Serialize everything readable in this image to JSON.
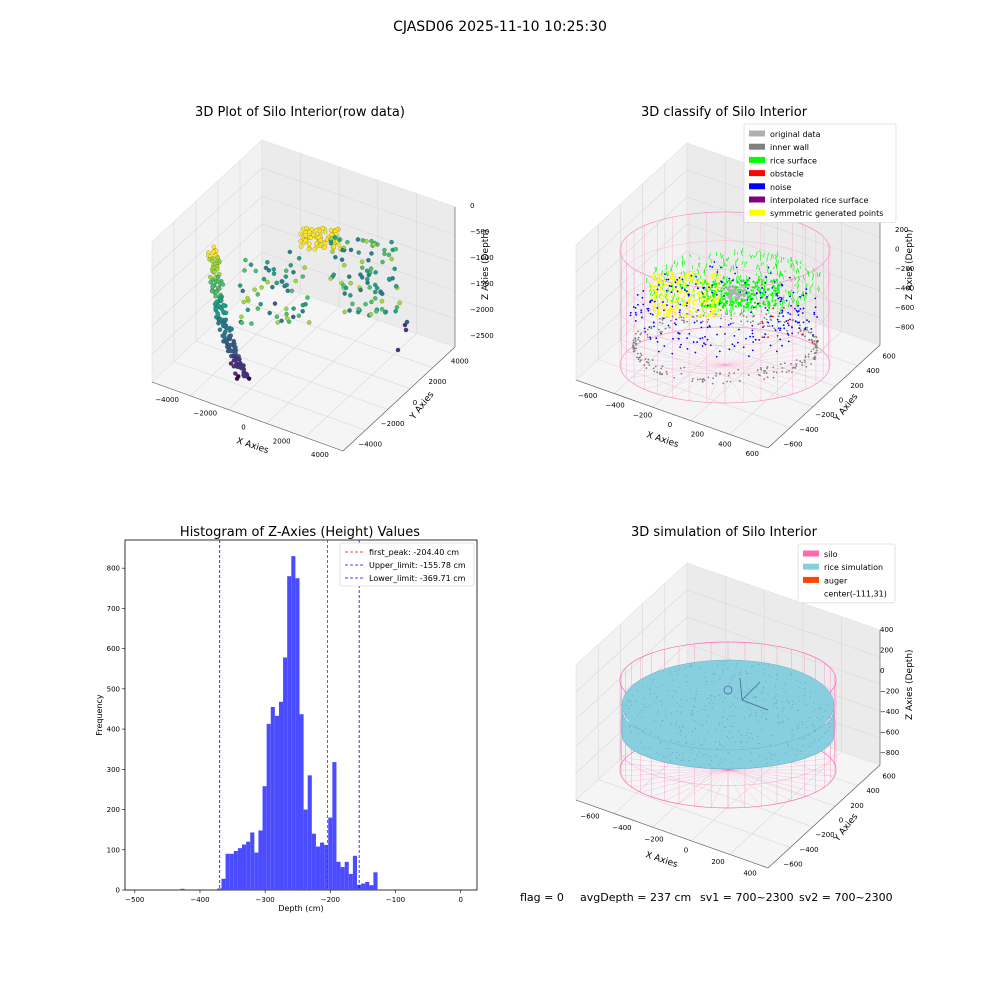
{
  "figure_title": "CJASD06 2025-11-10 10:25:30",
  "status_line": {
    "flag": "flag = 0",
    "avg_depth": "avgDepth = 237 cm",
    "sv1": "sv1 = 700~2300",
    "sv2": "sv2 = 700~2300"
  },
  "colors": {
    "rice_surface": "#00ff00",
    "original_data": "#b0b0b0",
    "inner_wall": "#808080",
    "obstacle": "#ff0000",
    "noise": "#0000ff",
    "interpolated_rice_surface": "#800080",
    "symmetric_generated_points": "#ffff00",
    "silo": "#ff69b4",
    "rice_simulation": "#87cedf",
    "auger": "#ff4500",
    "histogram_bar": "#4b4bff"
  },
  "chart_data": [
    {
      "type": "scatter",
      "kind": "3d",
      "title": "3D Plot of Silo Interior(row data)",
      "xlabel": "X Axies",
      "ylabel": "Y Axies",
      "zlabel": "Z Axies (Depth)",
      "x_ticks": [
        "−4000",
        "−2000",
        "0",
        "2000",
        "4000"
      ],
      "y_ticks": [
        "−4000",
        "−2000",
        "0",
        "2000",
        "4000"
      ],
      "z_ticks": [
        "0",
        "−500",
        "−1000",
        "−1500",
        "−2000",
        "−2500"
      ],
      "xlim": [
        -4500,
        4500
      ],
      "ylim": [
        -4500,
        4500
      ],
      "zlim": [
        -2800,
        0
      ],
      "colormap": "viridis (by depth)"
    },
    {
      "type": "scatter",
      "kind": "3d",
      "title": "3D classify of Silo Interior",
      "xlabel": "X Axies",
      "ylabel": "Y Axies",
      "zlabel": "Z Axies (Depth)",
      "x_ticks": [
        "−600",
        "−400",
        "−200",
        "0",
        "200",
        "400",
        "600"
      ],
      "y_ticks": [
        "−600",
        "−400",
        "−200",
        "0",
        "200",
        "400",
        "600"
      ],
      "z_ticks": [
        "200",
        "0",
        "−200",
        "−400",
        "−600",
        "−800"
      ],
      "xlim": [
        -700,
        700
      ],
      "ylim": [
        -700,
        700
      ],
      "zlim": [
        -900,
        300
      ],
      "legend": [
        {
          "label": "original data",
          "color_key": "original_data"
        },
        {
          "label": "inner wall",
          "color_key": "inner_wall"
        },
        {
          "label": "rice surface",
          "color_key": "rice_surface"
        },
        {
          "label": "obstacle",
          "color_key": "obstacle"
        },
        {
          "label": "noise",
          "color_key": "noise"
        },
        {
          "label": "interpolated rice surface",
          "color_key": "interpolated_rice_surface"
        },
        {
          "label": "symmetric generated points",
          "color_key": "symmetric_generated_points"
        }
      ],
      "legend_position": "top-right"
    },
    {
      "type": "bar",
      "kind": "histogram",
      "title": "Histogram of Z-Axies (Height) Values",
      "xlabel": "Depth (cm)",
      "ylabel": "Frequency",
      "xlim": [
        -515,
        25
      ],
      "ylim": [
        0,
        870
      ],
      "x_ticks": [
        -500,
        -400,
        -300,
        -200,
        -100,
        0
      ],
      "y_ticks": [
        0,
        100,
        200,
        300,
        400,
        500,
        600,
        700,
        800
      ],
      "bin_start": -430,
      "bin_width": 6.3,
      "values": [
        3,
        0,
        0,
        0,
        0,
        0,
        0,
        0,
        0,
        4,
        28,
        90,
        90,
        97,
        104,
        113,
        120,
        143,
        93,
        148,
        258,
        413,
        455,
        433,
        468,
        578,
        780,
        830,
        775,
        437,
        200,
        285,
        140,
        108,
        118,
        112,
        180,
        318,
        70,
        57,
        70,
        40,
        85,
        13,
        16,
        20,
        12,
        44
      ],
      "lines": [
        {
          "label": "first_peak: -204.40 cm",
          "x": -204.4,
          "color": "#ff0000"
        },
        {
          "label": "Upper_limit: -155.78 cm",
          "x": -155.78,
          "color": "#0000ff"
        },
        {
          "label": "Lower_limit: -369.71 cm",
          "x": -369.71,
          "color": "#0000ff"
        }
      ],
      "legend_position": "top-right"
    },
    {
      "type": "scatter",
      "kind": "3d-surface",
      "title": "3D simulation of Silo Interior",
      "xlabel": "X Axies",
      "ylabel": "Y Axies",
      "zlabel": "Z Axies (Depth)",
      "x_ticks": [
        "−600",
        "−400",
        "−200",
        "0",
        "200",
        "400"
      ],
      "y_ticks": [
        "−600",
        "−400",
        "−200",
        "0",
        "200",
        "400",
        "600"
      ],
      "z_ticks": [
        "400",
        "200",
        "0",
        "−200",
        "−400",
        "−600",
        "−800"
      ],
      "xlim": [
        -700,
        500
      ],
      "ylim": [
        -700,
        700
      ],
      "zlim": [
        -900,
        500
      ],
      "legend": [
        {
          "label": "silo",
          "color_key": "silo"
        },
        {
          "label": "rice simulation",
          "color_key": "rice_simulation"
        },
        {
          "label": "auger",
          "color_key": "auger"
        },
        {
          "label": "center(-111,31)",
          "color_key": ""
        }
      ],
      "legend_position": "top-right"
    }
  ]
}
